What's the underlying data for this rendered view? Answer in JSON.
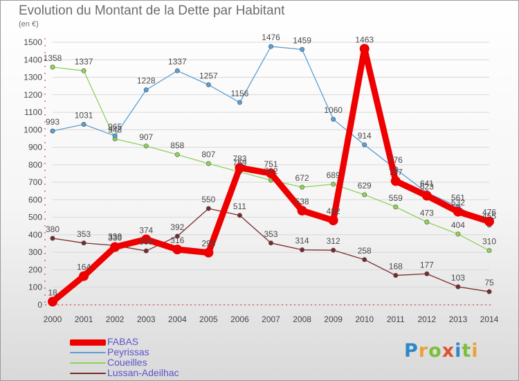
{
  "title": "Evolution du Montant de la Dette par Habitant",
  "unit_label": "(en €)",
  "logo": {
    "text": "Proxiti",
    "colors": [
      "#2f86c8",
      "#e8a23a",
      "#7bbf3a",
      "#e0502f",
      "#2f86c8",
      "#7bbf3a",
      "#e8a23a"
    ]
  },
  "chart_data": {
    "type": "line",
    "title": "Evolution du Montant de la Dette par Habitant",
    "ylabel": "(en €)",
    "xlabel": "",
    "x": [
      "2000",
      "2001",
      "2002",
      "2003",
      "2004",
      "2005",
      "2006",
      "2007",
      "2008",
      "2009",
      "2010",
      "2011",
      "2012",
      "2013",
      "2014"
    ],
    "ylim": [
      0,
      1500
    ],
    "yticks": [
      0,
      100,
      200,
      300,
      400,
      500,
      600,
      700,
      800,
      900,
      1000,
      1100,
      1200,
      1300,
      1400,
      1500
    ],
    "grid": true,
    "legend_position": "bottom-left",
    "series": [
      {
        "name": "FABAS",
        "color": "#ee0000",
        "values": [
          18,
          164,
          330,
          374,
          316,
          298,
          783,
          751,
          538,
          482,
          1463,
          707,
          623,
          532,
          476
        ]
      },
      {
        "name": "Peyrissas",
        "color": "#5a9fd4",
        "values": [
          993,
          1031,
          965,
          1228,
          1337,
          1257,
          1156,
          1476,
          1459,
          1060,
          914,
          776,
          641,
          561,
          455
        ]
      },
      {
        "name": "Coueilles",
        "color": "#8fd25a",
        "values": [
          1358,
          1337,
          948,
          907,
          858,
          807,
          759,
          712,
          672,
          689,
          629,
          559,
          473,
          404,
          310
        ]
      },
      {
        "name": "Lussan-Adeilhac",
        "color": "#7a2a2a",
        "values": [
          380,
          353,
          339,
          308,
          392,
          550,
          511,
          353,
          314,
          312,
          258,
          168,
          177,
          103,
          75
        ]
      }
    ]
  }
}
